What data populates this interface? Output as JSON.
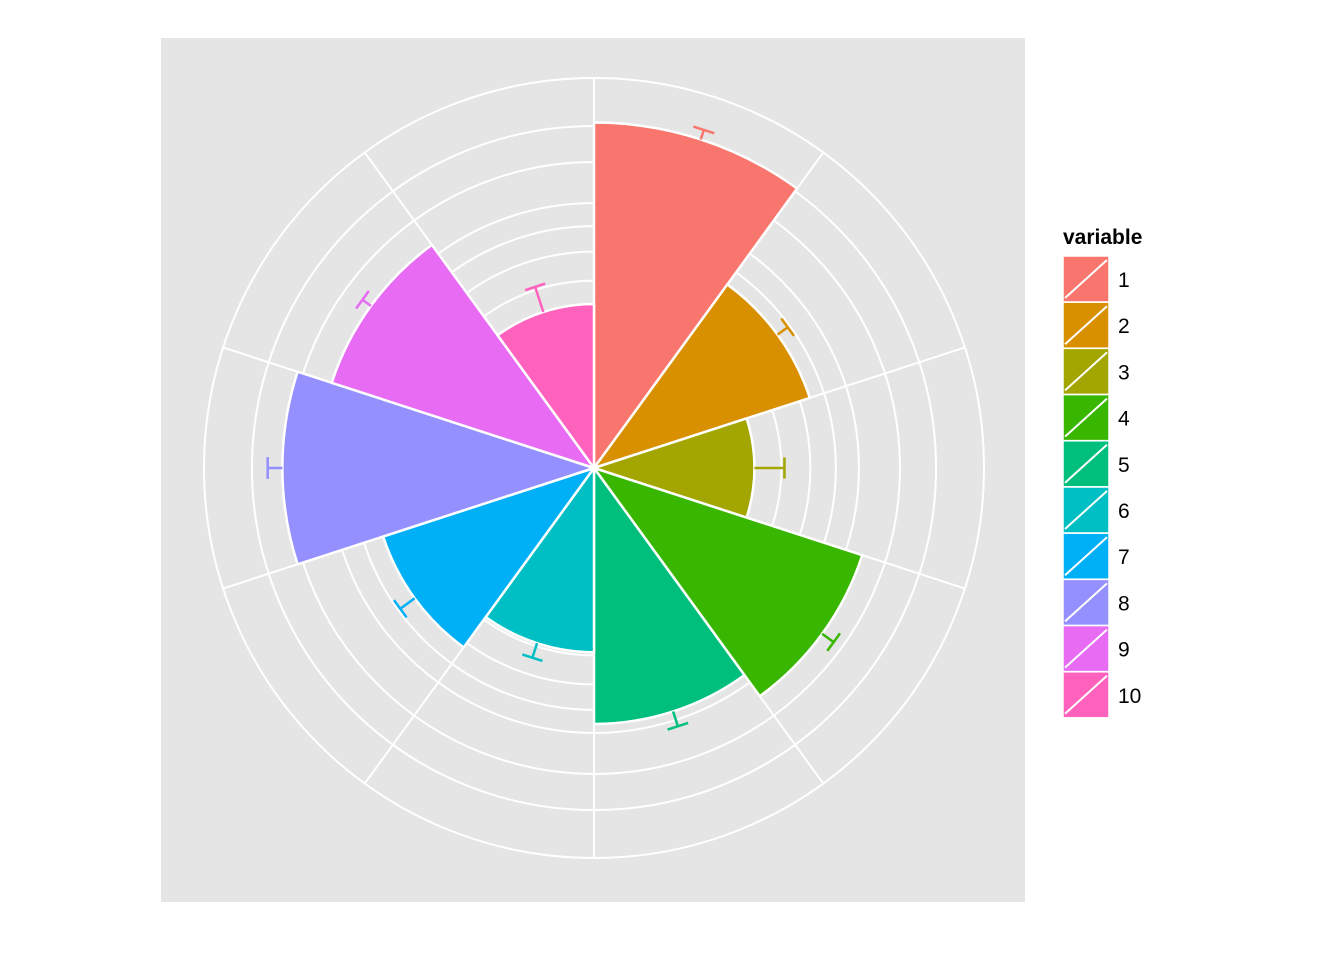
{
  "chart_data": {
    "type": "polar-bar",
    "categories": [
      "1",
      "2",
      "3",
      "4",
      "5",
      "6",
      "7",
      "8",
      "9",
      "10"
    ],
    "values": [
      10.2,
      4.4,
      2.2,
      6.8,
      5.6,
      2.9,
      4.2,
      8.3,
      6.5,
      2.3
    ],
    "error_upper": [
      10.8,
      4.9,
      3.1,
      7.5,
      6.3,
      3.4,
      4.9,
      9.1,
      7.0,
      3.1
    ],
    "radial_range": [
      0,
      13
    ],
    "colors": [
      "#F8766D",
      "#D89000",
      "#A3A500",
      "#39B600",
      "#00BF7D",
      "#00BFC4",
      "#00B0F6",
      "#9590FF",
      "#E76BF3",
      "#FF62BC"
    ],
    "panel_background": "#E5E5E5",
    "grid": true,
    "grid_color": "#FFFFFF",
    "legend": {
      "title": "variable",
      "placement": "right",
      "entries": [
        "1",
        "2",
        "3",
        "4",
        "5",
        "6",
        "7",
        "8",
        "9",
        "10"
      ]
    }
  }
}
